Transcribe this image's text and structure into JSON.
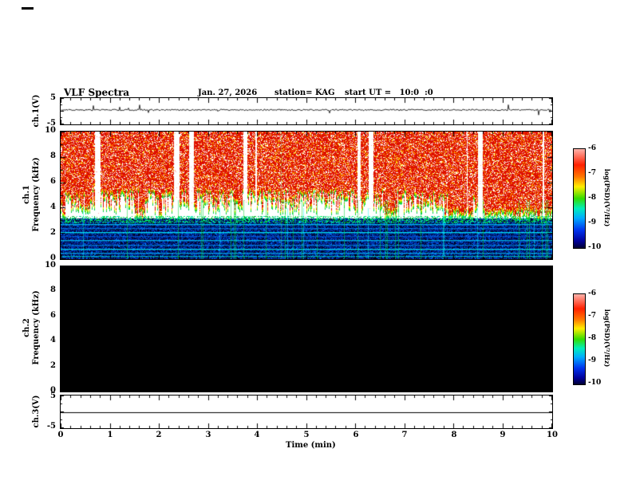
{
  "header": {
    "title": "VLF Spectra",
    "date": "Jan. 27, 2026",
    "station": "station= KAG",
    "start_ut": "start UT =   10:0  :0"
  },
  "axis": {
    "x_label": "Time (min)",
    "x_ticks": [
      "0",
      "1",
      "2",
      "3",
      "4",
      "5",
      "6",
      "7",
      "8",
      "9",
      "10"
    ]
  },
  "panels": {
    "ch1wave": {
      "label": "ch.1(V)",
      "ymax": "5",
      "ymin": "-5"
    },
    "spec1": {
      "label_ch": "ch.1",
      "label_freq": "Frequency (kHz)",
      "yticks": [
        "10",
        "8",
        "6",
        "4",
        "2",
        "0"
      ]
    },
    "spec2": {
      "label_ch": "ch.2",
      "label_freq": "Frequency (kHz)",
      "yticks": [
        "10",
        "8",
        "6",
        "4",
        "2",
        "0"
      ]
    },
    "ch3wave": {
      "label": "ch.3(V)",
      "ymax": "5",
      "ymin": "-5"
    }
  },
  "colorbars": {
    "label": "log(PSD)(V²/Hz)",
    "ticks": [
      "-6",
      "-7",
      "-8",
      "-9",
      "-10"
    ]
  },
  "colors": {
    "background": "#ffffff",
    "axis": "#000000",
    "spec_hot": "#dd0f00",
    "spec_cold": "#000066",
    "no_data": "#000000"
  },
  "chart_data": [
    {
      "type": "line",
      "panel": "ch.1 voltage waveform",
      "ylabel": "ch.1(V)",
      "ylim": [
        -5,
        5
      ],
      "xlim": [
        0,
        10
      ],
      "xlabel": "Time (min)",
      "description": "Noisy waveform fluctuating near 0 V across 0-10 min with occasional small spikes of a few volts"
    },
    {
      "type": "heatmap",
      "panel": "ch.1 spectrogram",
      "ylabel": "Frequency (kHz)",
      "ylim": [
        0,
        10
      ],
      "xlim": [
        0,
        10
      ],
      "colorbar_label": "log(PSD)(V²/Hz)",
      "colorbar_ticks": [
        -6,
        -7,
        -8,
        -9,
        -10
      ],
      "description": "Strong broadband VLF activity: high PSD (red, near 1e-6 V²/Hz) from about 4-10 kHz with dense vertical striations and intermittent white gaps; yellow-green transition fringe near 3-4 kHz; low-PSD blue region below 3 kHz with several discrete bright horizontal emission lines and thin vertical green/cyan striations"
    },
    {
      "type": "heatmap",
      "panel": "ch.2 spectrogram",
      "ylabel": "Frequency (kHz)",
      "ylim": [
        0,
        10
      ],
      "xlim": [
        0,
        10
      ],
      "colorbar_label": "log(PSD)(V²/Hz)",
      "colorbar_ticks": [
        -6,
        -7,
        -8,
        -9,
        -10
      ],
      "description": "No signal recorded: uniform black panel (PSD at or below 1e-10 V²/Hz)"
    },
    {
      "type": "line",
      "panel": "ch.3 voltage waveform",
      "ylabel": "ch.3(V)",
      "ylim": [
        -5,
        5
      ],
      "xlim": [
        0,
        10
      ],
      "description": "Completely flat line at 0 V"
    }
  ]
}
